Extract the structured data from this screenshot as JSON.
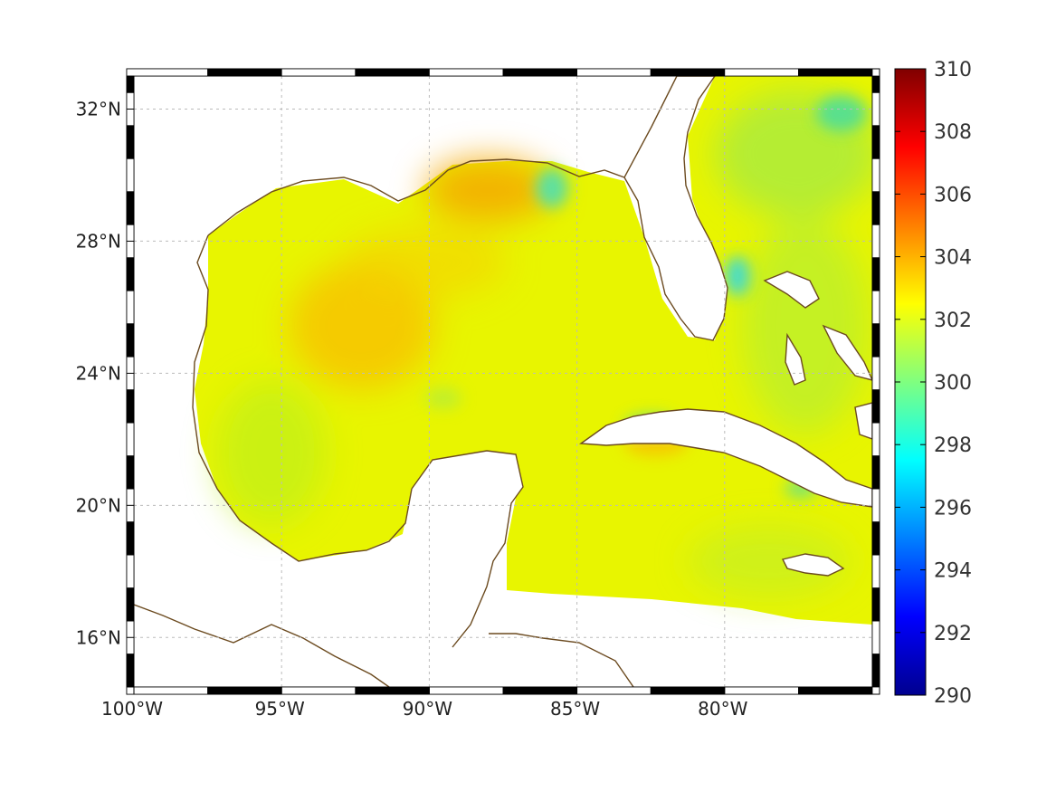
{
  "map": {
    "region": "Gulf of Mexico and western Caribbean",
    "lon_range": [
      -100,
      -75
    ],
    "lat_range": [
      14.5,
      33
    ],
    "lon_ticks": [
      {
        "value": -100,
        "label": "100°W"
      },
      {
        "value": -95,
        "label": "95°W"
      },
      {
        "value": -90,
        "label": "90°W"
      },
      {
        "value": -85,
        "label": "85°W"
      },
      {
        "value": -80,
        "label": "80°W"
      }
    ],
    "lat_ticks": [
      {
        "value": 16,
        "label": "16°N"
      },
      {
        "value": 20,
        "label": "20°N"
      },
      {
        "value": 24,
        "label": "24°N"
      },
      {
        "value": 28,
        "label": "28°N"
      },
      {
        "value": 32,
        "label": "32°N"
      }
    ],
    "grid": true,
    "coastline_color": "#6b4a1f",
    "land_color": "#ffffff"
  },
  "colorbar": {
    "min": 290,
    "max": 310,
    "tick_labels": [
      "290",
      "292",
      "294",
      "296",
      "298",
      "300",
      "302",
      "304",
      "306",
      "308",
      "310"
    ],
    "colormap": "jet",
    "stops": [
      "#00008f",
      "#0000ff",
      "#00ffff",
      "#ffff00",
      "#ff0000",
      "#800000"
    ]
  }
}
